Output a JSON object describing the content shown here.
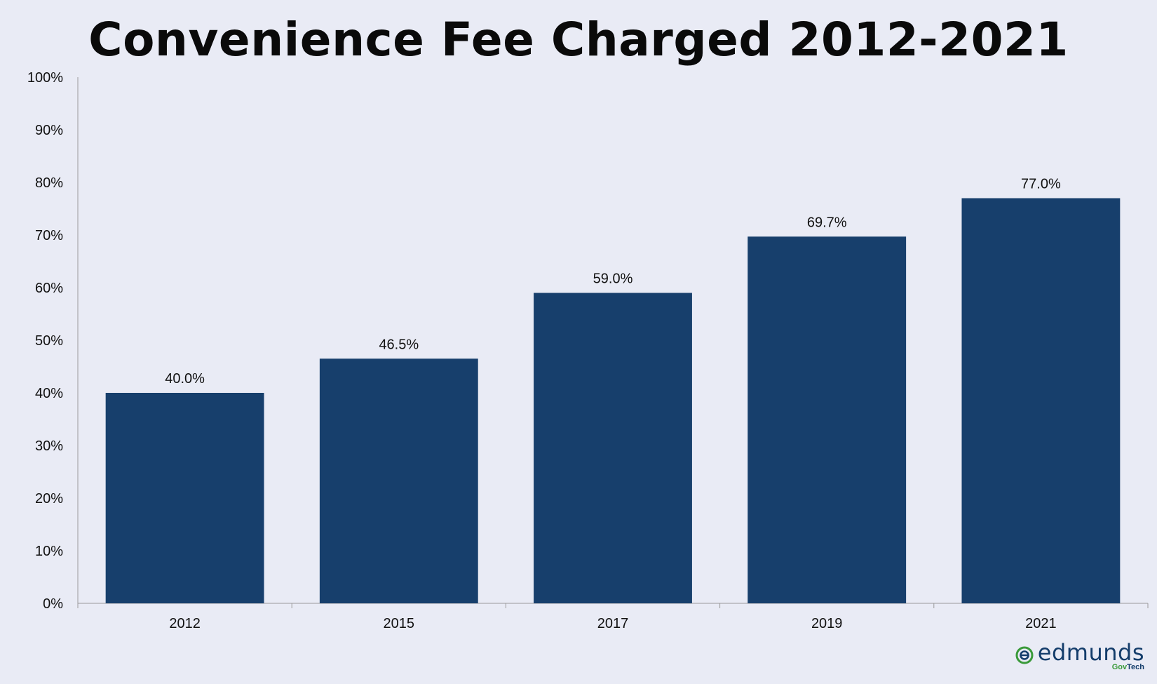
{
  "chart_data": {
    "type": "bar",
    "title": "Convenience Fee Charged 2012-2021",
    "categories": [
      "2012",
      "2015",
      "2017",
      "2019",
      "2021"
    ],
    "values": [
      40.0,
      46.5,
      59.0,
      69.7,
      77.0
    ],
    "data_labels": [
      "40.0%",
      "46.5%",
      "59.0%",
      "69.7%",
      "77.0%"
    ],
    "ylim": [
      0,
      100
    ],
    "yticks": [
      0,
      10,
      20,
      30,
      40,
      50,
      60,
      70,
      80,
      90,
      100
    ],
    "ytick_labels": [
      "0%",
      "10%",
      "20%",
      "30%",
      "40%",
      "50%",
      "60%",
      "70%",
      "80%",
      "90%",
      "100%"
    ],
    "grid": false,
    "bar_color": "#173f6c",
    "background": "#e9ebf5"
  },
  "logo": {
    "word": "edmunds",
    "sub_gov": "Gov",
    "sub_tech": "Tech",
    "green": "#3a9a3a",
    "navy": "#143d6b"
  }
}
